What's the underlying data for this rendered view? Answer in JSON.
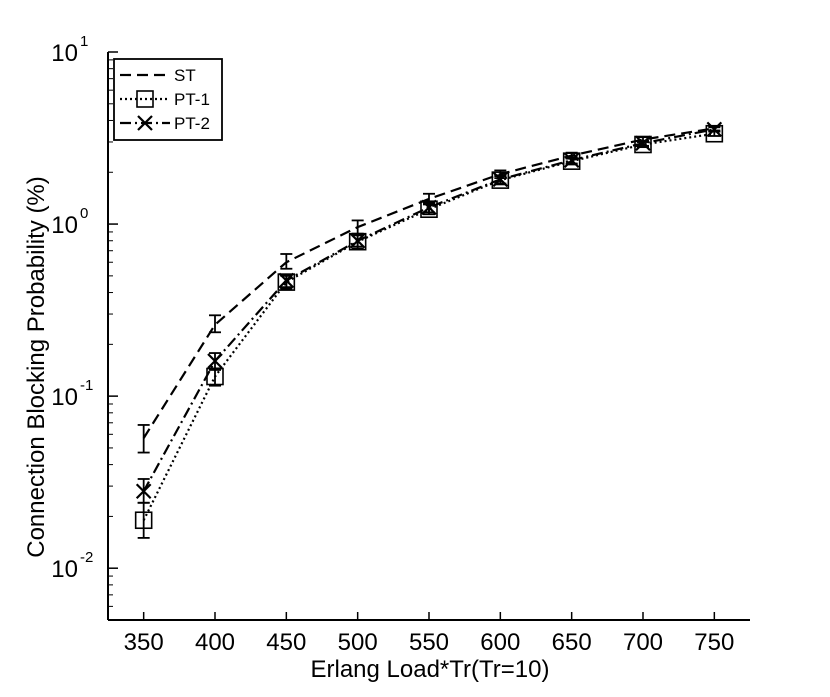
{
  "chart_data": {
    "type": "line",
    "title": "",
    "xlabel": "Erlang Load*Tr(Tr=10)",
    "ylabel": "Connection Blocking Probability (%)",
    "y_scale": "log",
    "xlim": [
      325,
      775
    ],
    "ylim": [
      0.005,
      10
    ],
    "x": [
      350,
      400,
      450,
      500,
      550,
      600,
      650,
      700,
      750
    ],
    "x_ticks": [
      350,
      400,
      450,
      500,
      550,
      600,
      650,
      700,
      750
    ],
    "x_tick_labels": [
      "350",
      "400",
      "450",
      "500",
      "550",
      "600",
      "650",
      "700",
      "750"
    ],
    "y_ticks": [
      {
        "value": 10,
        "base": "10",
        "exp": "1"
      },
      {
        "value": 1,
        "base": "10",
        "exp": "0"
      },
      {
        "value": 0.1,
        "base": "10",
        "exp": "-1"
      },
      {
        "value": 0.01,
        "base": "10",
        "exp": "-2"
      }
    ],
    "grid": false,
    "legend_position": "top-left",
    "series": [
      {
        "name": "ST",
        "style": "dashed",
        "marker": "none",
        "values": [
          0.057,
          0.26,
          0.6,
          0.96,
          1.4,
          1.95,
          2.5,
          3.1,
          3.6
        ],
        "err_low": [
          0.047,
          0.235,
          0.55,
          0.88,
          1.32,
          1.85,
          2.4,
          3.0,
          3.5
        ],
        "err_high": [
          0.068,
          0.295,
          0.67,
          1.05,
          1.5,
          2.05,
          2.6,
          3.2,
          3.7
        ]
      },
      {
        "name": "PT-1",
        "style": "dotted",
        "marker": "square",
        "values": [
          0.019,
          0.13,
          0.46,
          0.79,
          1.22,
          1.8,
          2.32,
          2.9,
          3.35
        ],
        "err_low": [
          0.015,
          0.115,
          0.42,
          0.72,
          1.14,
          1.7,
          2.22,
          2.8,
          3.25
        ],
        "err_high": [
          0.024,
          0.145,
          0.5,
          0.86,
          1.3,
          1.9,
          2.42,
          3.0,
          3.45
        ]
      },
      {
        "name": "PT-2",
        "style": "dashdot",
        "marker": "x",
        "values": [
          0.028,
          0.16,
          0.47,
          0.8,
          1.25,
          1.82,
          2.35,
          2.95,
          3.55
        ],
        "err_low": [
          0.024,
          0.142,
          0.43,
          0.74,
          1.17,
          1.72,
          2.25,
          2.85,
          3.45
        ],
        "err_high": [
          0.033,
          0.178,
          0.51,
          0.87,
          1.33,
          1.92,
          2.45,
          3.05,
          3.65
        ]
      }
    ]
  }
}
